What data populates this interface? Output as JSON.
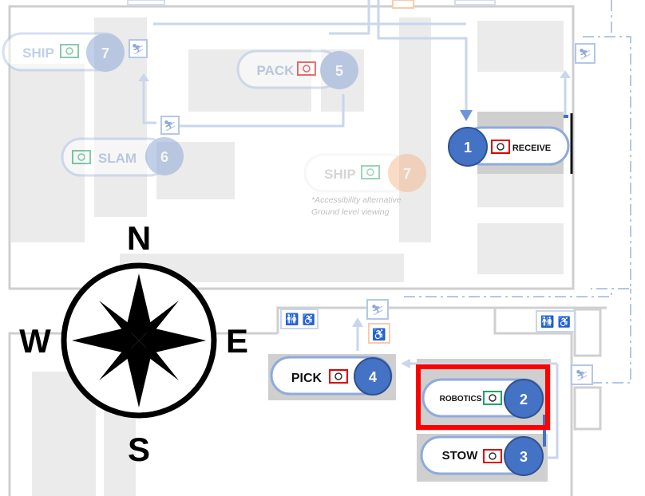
{
  "stations": {
    "receive": {
      "label": "RECEIVE",
      "number": "1"
    },
    "robotics": {
      "label": "ROBOTICS",
      "number": "2"
    },
    "stow": {
      "label": "STOW",
      "number": "3"
    },
    "pick": {
      "label": "PICK",
      "number": "4"
    },
    "pack": {
      "label": "PACK",
      "number": "5"
    },
    "slam": {
      "label": "SLAM",
      "number": "6"
    },
    "ship_upper": {
      "label": "SHIP",
      "number": "7"
    },
    "ship_alt": {
      "label": "SHIP",
      "number": "7"
    }
  },
  "note": {
    "line1": "*Accessibility alternative",
    "line2": "Ground level viewing"
  },
  "compass": {
    "n": "N",
    "s": "S",
    "e": "E",
    "w": "W"
  },
  "colors": {
    "active_blue": "#4472c4",
    "faded_blue": "#b4c7e7",
    "faded_orange": "#f8cbad",
    "highlight_red": "#ff0000",
    "camera_red": "#e00000",
    "camera_green": "#21a366"
  },
  "icons": [
    "camera-icon",
    "stairs-icon",
    "restroom-icon",
    "wheelchair-icon",
    "compass-rose-icon"
  ]
}
